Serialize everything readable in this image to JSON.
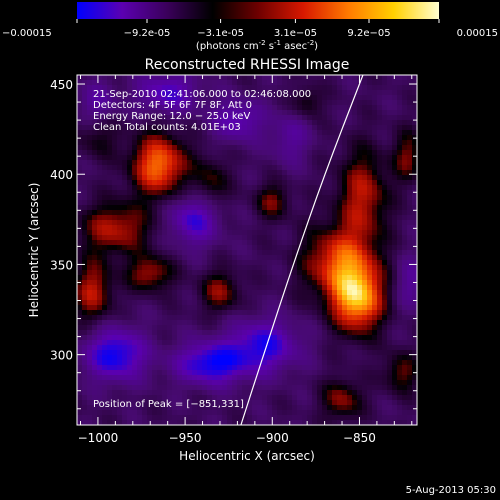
{
  "colorbar": {
    "ticks": [
      "-0.00015",
      "-9.2e-05",
      "-3.1e-05",
      "3.1e-05",
      "9.2e-05",
      "0.00015"
    ],
    "tick_values": [
      -0.00015,
      -9.2e-05,
      -3.1e-05,
      3.1e-05,
      9.2e-05,
      0.00015
    ],
    "units_main": "(photons cm",
    "units_sup1": "-2",
    "units_mid": " s",
    "units_sup2": "-1",
    "units_end": " asec",
    "units_sup3": "-2",
    "units_close": ")",
    "colors": [
      "#0000ff",
      "#5b00b0",
      "#3a005a",
      "#000000",
      "#6e0000",
      "#d81800",
      "#ff7a00",
      "#ffd000",
      "#ffffd0"
    ]
  },
  "chart_data": {
    "type": "heatmap",
    "title": "Reconstructed RHESSI Image",
    "xlabel": "Heliocentric X (arcsec)",
    "ylabel": "Heliocentric Y (arcsec)",
    "xlim": [
      -1012,
      -817
    ],
    "ylim": [
      261,
      455
    ],
    "xticks": [
      -1000,
      -950,
      -900,
      -850
    ],
    "xtick_labels": [
      "−1000",
      "−950",
      "−900",
      "−850"
    ],
    "yticks": [
      300,
      350,
      400,
      450
    ],
    "ytick_labels": [
      "300",
      "350",
      "400",
      "450"
    ],
    "info_lines": [
      "21-Sep-2010 02:41:06.000 to 02:46:08.000",
      "Detectors: 4F 5F 6F 7F 8F, Att 0",
      "Energy Range: 12.0 − 25.0 keV",
      "Clean     Total counts: 4.01E+03"
    ],
    "peak_label": "Position of Peak = [−851,331]",
    "peak": [
      -851,
      331
    ],
    "sources": [
      {
        "x": -851,
        "y": 331,
        "sx": 10,
        "sy": 13,
        "amp": 1.0
      },
      {
        "x": -862,
        "y": 351,
        "sx": 14,
        "sy": 14,
        "amp": 0.7
      },
      {
        "x": -848,
        "y": 388,
        "sx": 10,
        "sy": 18,
        "amp": 0.55
      },
      {
        "x": -965,
        "y": 405,
        "sx": 11,
        "sy": 12,
        "amp": 0.85
      },
      {
        "x": -990,
        "y": 370,
        "sx": 14,
        "sy": 10,
        "amp": 0.55
      },
      {
        "x": -1003,
        "y": 335,
        "sx": 8,
        "sy": 12,
        "amp": 0.55
      },
      {
        "x": -970,
        "y": 345,
        "sx": 9,
        "sy": 7,
        "amp": 0.5
      },
      {
        "x": -930,
        "y": 335,
        "sx": 8,
        "sy": 8,
        "amp": 0.45
      },
      {
        "x": -935,
        "y": 395,
        "sx": 7,
        "sy": 10,
        "amp": 0.35
      },
      {
        "x": -900,
        "y": 385,
        "sx": 7,
        "sy": 7,
        "amp": 0.4
      },
      {
        "x": -880,
        "y": 440,
        "sx": 6,
        "sy": 6,
        "amp": 0.3
      },
      {
        "x": -822,
        "y": 410,
        "sx": 6,
        "sy": 10,
        "amp": 0.4
      },
      {
        "x": -826,
        "y": 290,
        "sx": 7,
        "sy": 8,
        "amp": 0.4
      },
      {
        "x": -860,
        "y": 275,
        "sx": 8,
        "sy": 8,
        "amp": 0.45
      },
      {
        "x": -1000,
        "y": 420,
        "sx": 8,
        "sy": 8,
        "amp": 0.25
      },
      {
        "x": -945,
        "y": 375,
        "sx": 10,
        "sy": 10,
        "amp": -0.55
      },
      {
        "x": -990,
        "y": 300,
        "sx": 12,
        "sy": 10,
        "amp": -0.7
      },
      {
        "x": -905,
        "y": 305,
        "sx": 14,
        "sy": 10,
        "amp": -0.6
      },
      {
        "x": -935,
        "y": 295,
        "sx": 14,
        "sy": 8,
        "amp": -0.7
      },
      {
        "x": -960,
        "y": 445,
        "sx": 12,
        "sy": 8,
        "amp": -0.5
      },
      {
        "x": -920,
        "y": 430,
        "sx": 10,
        "sy": 8,
        "amp": -0.45
      },
      {
        "x": -1000,
        "y": 440,
        "sx": 8,
        "sy": 8,
        "amp": -0.3
      },
      {
        "x": -890,
        "y": 420,
        "sx": 8,
        "sy": 10,
        "amp": -0.3
      },
      {
        "x": -820,
        "y": 340,
        "sx": 6,
        "sy": 10,
        "amp": -0.3
      }
    ],
    "limb_curve": [
      [
        -918,
        261
      ],
      [
        -905,
        300
      ],
      [
        -888,
        350
      ],
      [
        -870,
        400
      ],
      [
        -848,
        455
      ]
    ]
  },
  "footer": {
    "date": "5-Aug-2013 05:30"
  }
}
